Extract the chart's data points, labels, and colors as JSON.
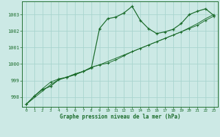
{
  "xlabel": "Graphe pression niveau de la mer (hPa)",
  "ylim": [
    997.4,
    1003.8
  ],
  "xlim": [
    -0.5,
    23.5
  ],
  "yticks": [
    998,
    999,
    1000,
    1001,
    1002,
    1003
  ],
  "xticks": [
    0,
    1,
    2,
    3,
    4,
    5,
    6,
    7,
    8,
    9,
    10,
    11,
    12,
    13,
    14,
    15,
    16,
    17,
    18,
    19,
    20,
    21,
    22,
    23
  ],
  "bg_color": "#cce9e5",
  "grid_color": "#a8d4ce",
  "line_color": "#1a6b2a",
  "series1": [
    997.55,
    998.05,
    998.45,
    998.65,
    999.05,
    999.2,
    999.35,
    999.55,
    999.75,
    1002.15,
    1002.75,
    1002.85,
    1003.1,
    1003.5,
    1002.65,
    1002.15,
    1001.85,
    1001.95,
    1002.1,
    1002.45,
    1003.0,
    1003.2,
    1003.35,
    1002.95
  ],
  "series2": [
    997.55,
    998.05,
    998.5,
    998.9,
    999.1,
    999.2,
    999.4,
    999.55,
    999.8,
    999.95,
    1000.05,
    1000.25,
    1000.5,
    1000.75,
    1000.95,
    1001.15,
    1001.35,
    1001.55,
    1001.75,
    1001.95,
    1002.15,
    1002.35,
    1002.65,
    1002.9
  ],
  "series3": [
    997.55,
    997.95,
    998.35,
    998.75,
    999.05,
    999.2,
    999.4,
    999.55,
    999.8,
    999.95,
    1000.15,
    1000.35,
    1000.55,
    1000.75,
    1000.95,
    1001.15,
    1001.35,
    1001.55,
    1001.75,
    1001.95,
    1002.2,
    1002.45,
    1002.75,
    1003.0
  ]
}
